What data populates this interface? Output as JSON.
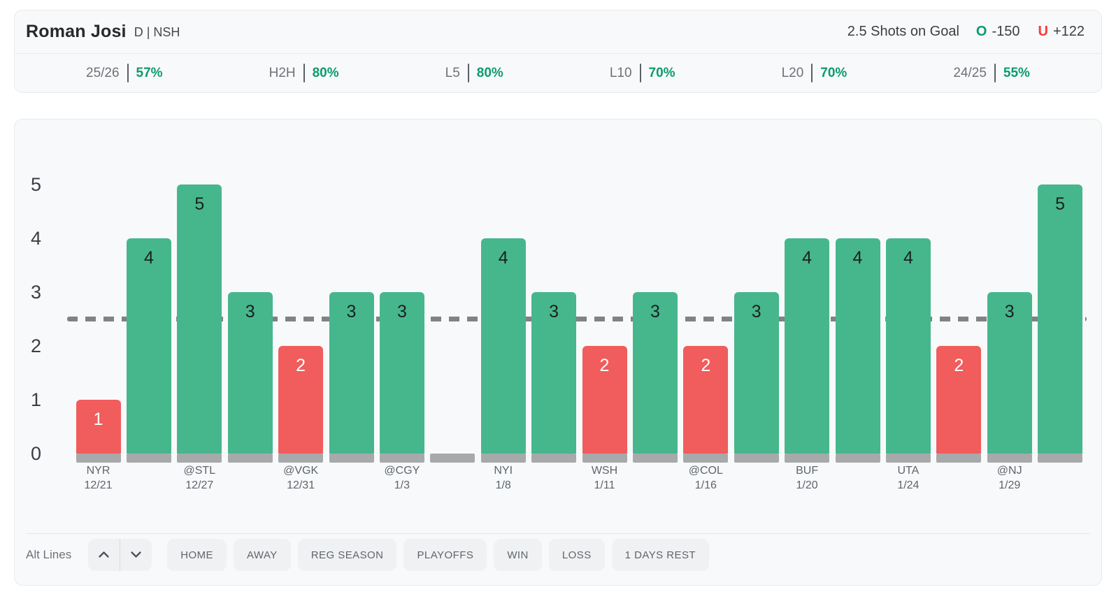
{
  "header": {
    "player": {
      "name": "Roman Josi",
      "position_team": "D | NSH"
    },
    "prop": {
      "label": "2.5 Shots on Goal",
      "over_letter": "O",
      "over_odds": "-150",
      "under_letter": "U",
      "under_odds": "+122",
      "over_color": "#0d9b6c",
      "under_color": "#f23b3b"
    },
    "stats": [
      {
        "label": "25/26",
        "value": "57%"
      },
      {
        "label": "H2H",
        "value": "80%"
      },
      {
        "label": "L5",
        "value": "80%"
      },
      {
        "label": "L10",
        "value": "70%"
      },
      {
        "label": "L20",
        "value": "70%"
      },
      {
        "label": "24/25",
        "value": "55%"
      }
    ],
    "stat_value_color": "#0d9b6c"
  },
  "chart_data": {
    "type": "bar",
    "title": "",
    "xlabel": "",
    "ylabel": "",
    "categories": [
      "NYR\n12/21",
      "",
      "@STL\n12/27",
      "",
      "@VGK\n12/31",
      "",
      "@CGY\n1/3",
      "",
      "NYI\n1/8",
      "",
      "WSH\n1/11",
      "",
      "@COL\n1/16",
      "",
      "BUF\n1/20",
      "",
      "UTA\n1/24",
      "",
      "@NJ\n1/29",
      ""
    ],
    "values": [
      1,
      4,
      5,
      3,
      2,
      3,
      3,
      0,
      4,
      3,
      2,
      3,
      2,
      3,
      4,
      4,
      4,
      2,
      3,
      5
    ],
    "threshold": 2.5,
    "threshold_style": "dashed",
    "ylim": [
      0,
      5
    ],
    "yticks": [
      "0",
      "1",
      "2",
      "3",
      "4",
      "5"
    ],
    "grid": false,
    "legend": null,
    "bar_value_labels_shown": true,
    "colors": {
      "over": "#46b78d",
      "under": "#f15c5c",
      "zero_base": "#a7a9ab",
      "threshold_line": "#7e8387"
    }
  },
  "controls": {
    "alt_lines_label": "Alt Lines",
    "icons": {
      "increase": "chevron-up-icon",
      "decrease": "chevron-down-icon"
    },
    "filters": [
      "HOME",
      "AWAY",
      "REG SEASON",
      "PLAYOFFS",
      "WIN",
      "LOSS",
      "1 DAYS REST"
    ]
  }
}
